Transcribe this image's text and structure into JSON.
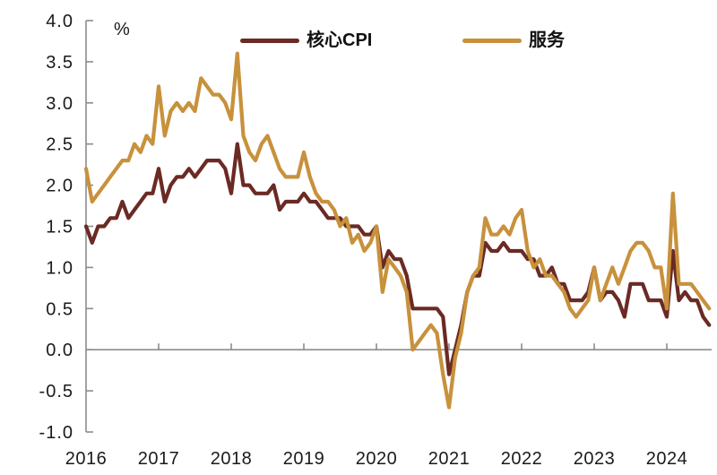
{
  "chart_data": {
    "type": "line",
    "title": "",
    "unit_label": "%",
    "ylabel": "",
    "xlabel": "",
    "ylim": [
      -1.0,
      4.0
    ],
    "grid": "none",
    "legend_position": "top-center-inside",
    "axis_color": "#8c8c8c",
    "text_color": "#1a1a1a",
    "x_tick_labels": [
      "2016",
      "2017",
      "2018",
      "2019",
      "2020",
      "2021",
      "2022",
      "2023",
      "2024"
    ],
    "y_ticks": [
      {
        "label": "4.0",
        "value": 4.0
      },
      {
        "label": "3.5",
        "value": 3.5
      },
      {
        "label": "3.0",
        "value": 3.0
      },
      {
        "label": "2.5",
        "value": 2.5
      },
      {
        "label": "2.0",
        "value": 2.0
      },
      {
        "label": "1.5",
        "value": 1.5
      },
      {
        "label": "1.0",
        "value": 1.0
      },
      {
        "label": "0.5",
        "value": 0.5
      },
      {
        "label": "0.0",
        "value": 0.0
      },
      {
        "label": "-0.5",
        "value": -0.5
      },
      {
        "label": "-1.0",
        "value": -1.0
      }
    ],
    "x_months": [
      "2016-01",
      "2016-02",
      "2016-03",
      "2016-04",
      "2016-05",
      "2016-06",
      "2016-07",
      "2016-08",
      "2016-09",
      "2016-10",
      "2016-11",
      "2016-12",
      "2017-01",
      "2017-02",
      "2017-03",
      "2017-04",
      "2017-05",
      "2017-06",
      "2017-07",
      "2017-08",
      "2017-09",
      "2017-10",
      "2017-11",
      "2017-12",
      "2018-01",
      "2018-02",
      "2018-03",
      "2018-04",
      "2018-05",
      "2018-06",
      "2018-07",
      "2018-08",
      "2018-09",
      "2018-10",
      "2018-11",
      "2018-12",
      "2019-01",
      "2019-02",
      "2019-03",
      "2019-04",
      "2019-05",
      "2019-06",
      "2019-07",
      "2019-08",
      "2019-09",
      "2019-10",
      "2019-11",
      "2019-12",
      "2020-01",
      "2020-02",
      "2020-03",
      "2020-04",
      "2020-05",
      "2020-06",
      "2020-07",
      "2020-08",
      "2020-09",
      "2020-10",
      "2020-11",
      "2020-12",
      "2021-01",
      "2021-02",
      "2021-03",
      "2021-04",
      "2021-05",
      "2021-06",
      "2021-07",
      "2021-08",
      "2021-09",
      "2021-10",
      "2021-11",
      "2021-12",
      "2022-01",
      "2022-02",
      "2022-03",
      "2022-04",
      "2022-05",
      "2022-06",
      "2022-07",
      "2022-08",
      "2022-09",
      "2022-10",
      "2022-11",
      "2022-12",
      "2023-01",
      "2023-02",
      "2023-03",
      "2023-04",
      "2023-05",
      "2023-06",
      "2023-07",
      "2023-08",
      "2023-09",
      "2023-10",
      "2023-11",
      "2023-12",
      "2024-01",
      "2024-02",
      "2024-03",
      "2024-04",
      "2024-05",
      "2024-06",
      "2024-07",
      "2024-08"
    ],
    "series": [
      {
        "key": "core-cpi",
        "name": "核心CPI",
        "color": "#6b2a24",
        "values": [
          1.5,
          1.3,
          1.5,
          1.5,
          1.6,
          1.6,
          1.8,
          1.6,
          1.7,
          1.8,
          1.9,
          1.9,
          2.2,
          1.8,
          2.0,
          2.1,
          2.1,
          2.2,
          2.1,
          2.2,
          2.3,
          2.3,
          2.3,
          2.2,
          1.9,
          2.5,
          2.0,
          2.0,
          1.9,
          1.9,
          1.9,
          2.0,
          1.7,
          1.8,
          1.8,
          1.8,
          1.9,
          1.8,
          1.8,
          1.7,
          1.6,
          1.6,
          1.6,
          1.5,
          1.5,
          1.5,
          1.4,
          1.4,
          1.5,
          1.0,
          1.2,
          1.1,
          1.1,
          0.9,
          0.5,
          0.5,
          0.5,
          0.5,
          0.5,
          0.4,
          -0.3,
          0.0,
          0.3,
          0.7,
          0.9,
          0.9,
          1.3,
          1.2,
          1.2,
          1.3,
          1.2,
          1.2,
          1.2,
          1.1,
          1.1,
          0.9,
          0.9,
          1.0,
          0.8,
          0.8,
          0.6,
          0.6,
          0.6,
          0.7,
          1.0,
          0.6,
          0.7,
          0.7,
          0.6,
          0.4,
          0.8,
          0.8,
          0.8,
          0.6,
          0.6,
          0.6,
          0.4,
          1.2,
          0.6,
          0.7,
          0.6,
          0.6,
          0.4,
          0.3
        ]
      },
      {
        "key": "services",
        "name": "服务",
        "color": "#c8913c",
        "values": [
          2.2,
          1.8,
          1.9,
          2.0,
          2.1,
          2.2,
          2.3,
          2.3,
          2.5,
          2.4,
          2.6,
          2.5,
          3.2,
          2.6,
          2.9,
          3.0,
          2.9,
          3.0,
          2.9,
          3.3,
          3.2,
          3.1,
          3.1,
          3.0,
          2.8,
          3.6,
          2.6,
          2.4,
          2.3,
          2.5,
          2.6,
          2.4,
          2.2,
          2.1,
          2.1,
          2.1,
          2.4,
          2.1,
          1.9,
          1.8,
          1.8,
          1.7,
          1.5,
          1.6,
          1.3,
          1.4,
          1.2,
          1.3,
          1.5,
          0.7,
          1.1,
          1.0,
          0.9,
          0.7,
          0.0,
          0.1,
          0.2,
          0.3,
          0.2,
          -0.3,
          -0.7,
          -0.1,
          0.2,
          0.7,
          0.9,
          1.0,
          1.6,
          1.4,
          1.4,
          1.5,
          1.4,
          1.6,
          1.7,
          1.2,
          1.0,
          1.1,
          0.9,
          0.9,
          0.8,
          0.7,
          0.5,
          0.4,
          0.5,
          0.6,
          1.0,
          0.6,
          0.8,
          1.0,
          0.8,
          1.0,
          1.2,
          1.3,
          1.3,
          1.2,
          1.0,
          1.0,
          0.5,
          1.9,
          0.8,
          0.8,
          0.8,
          0.7,
          0.6,
          0.5
        ]
      }
    ]
  }
}
